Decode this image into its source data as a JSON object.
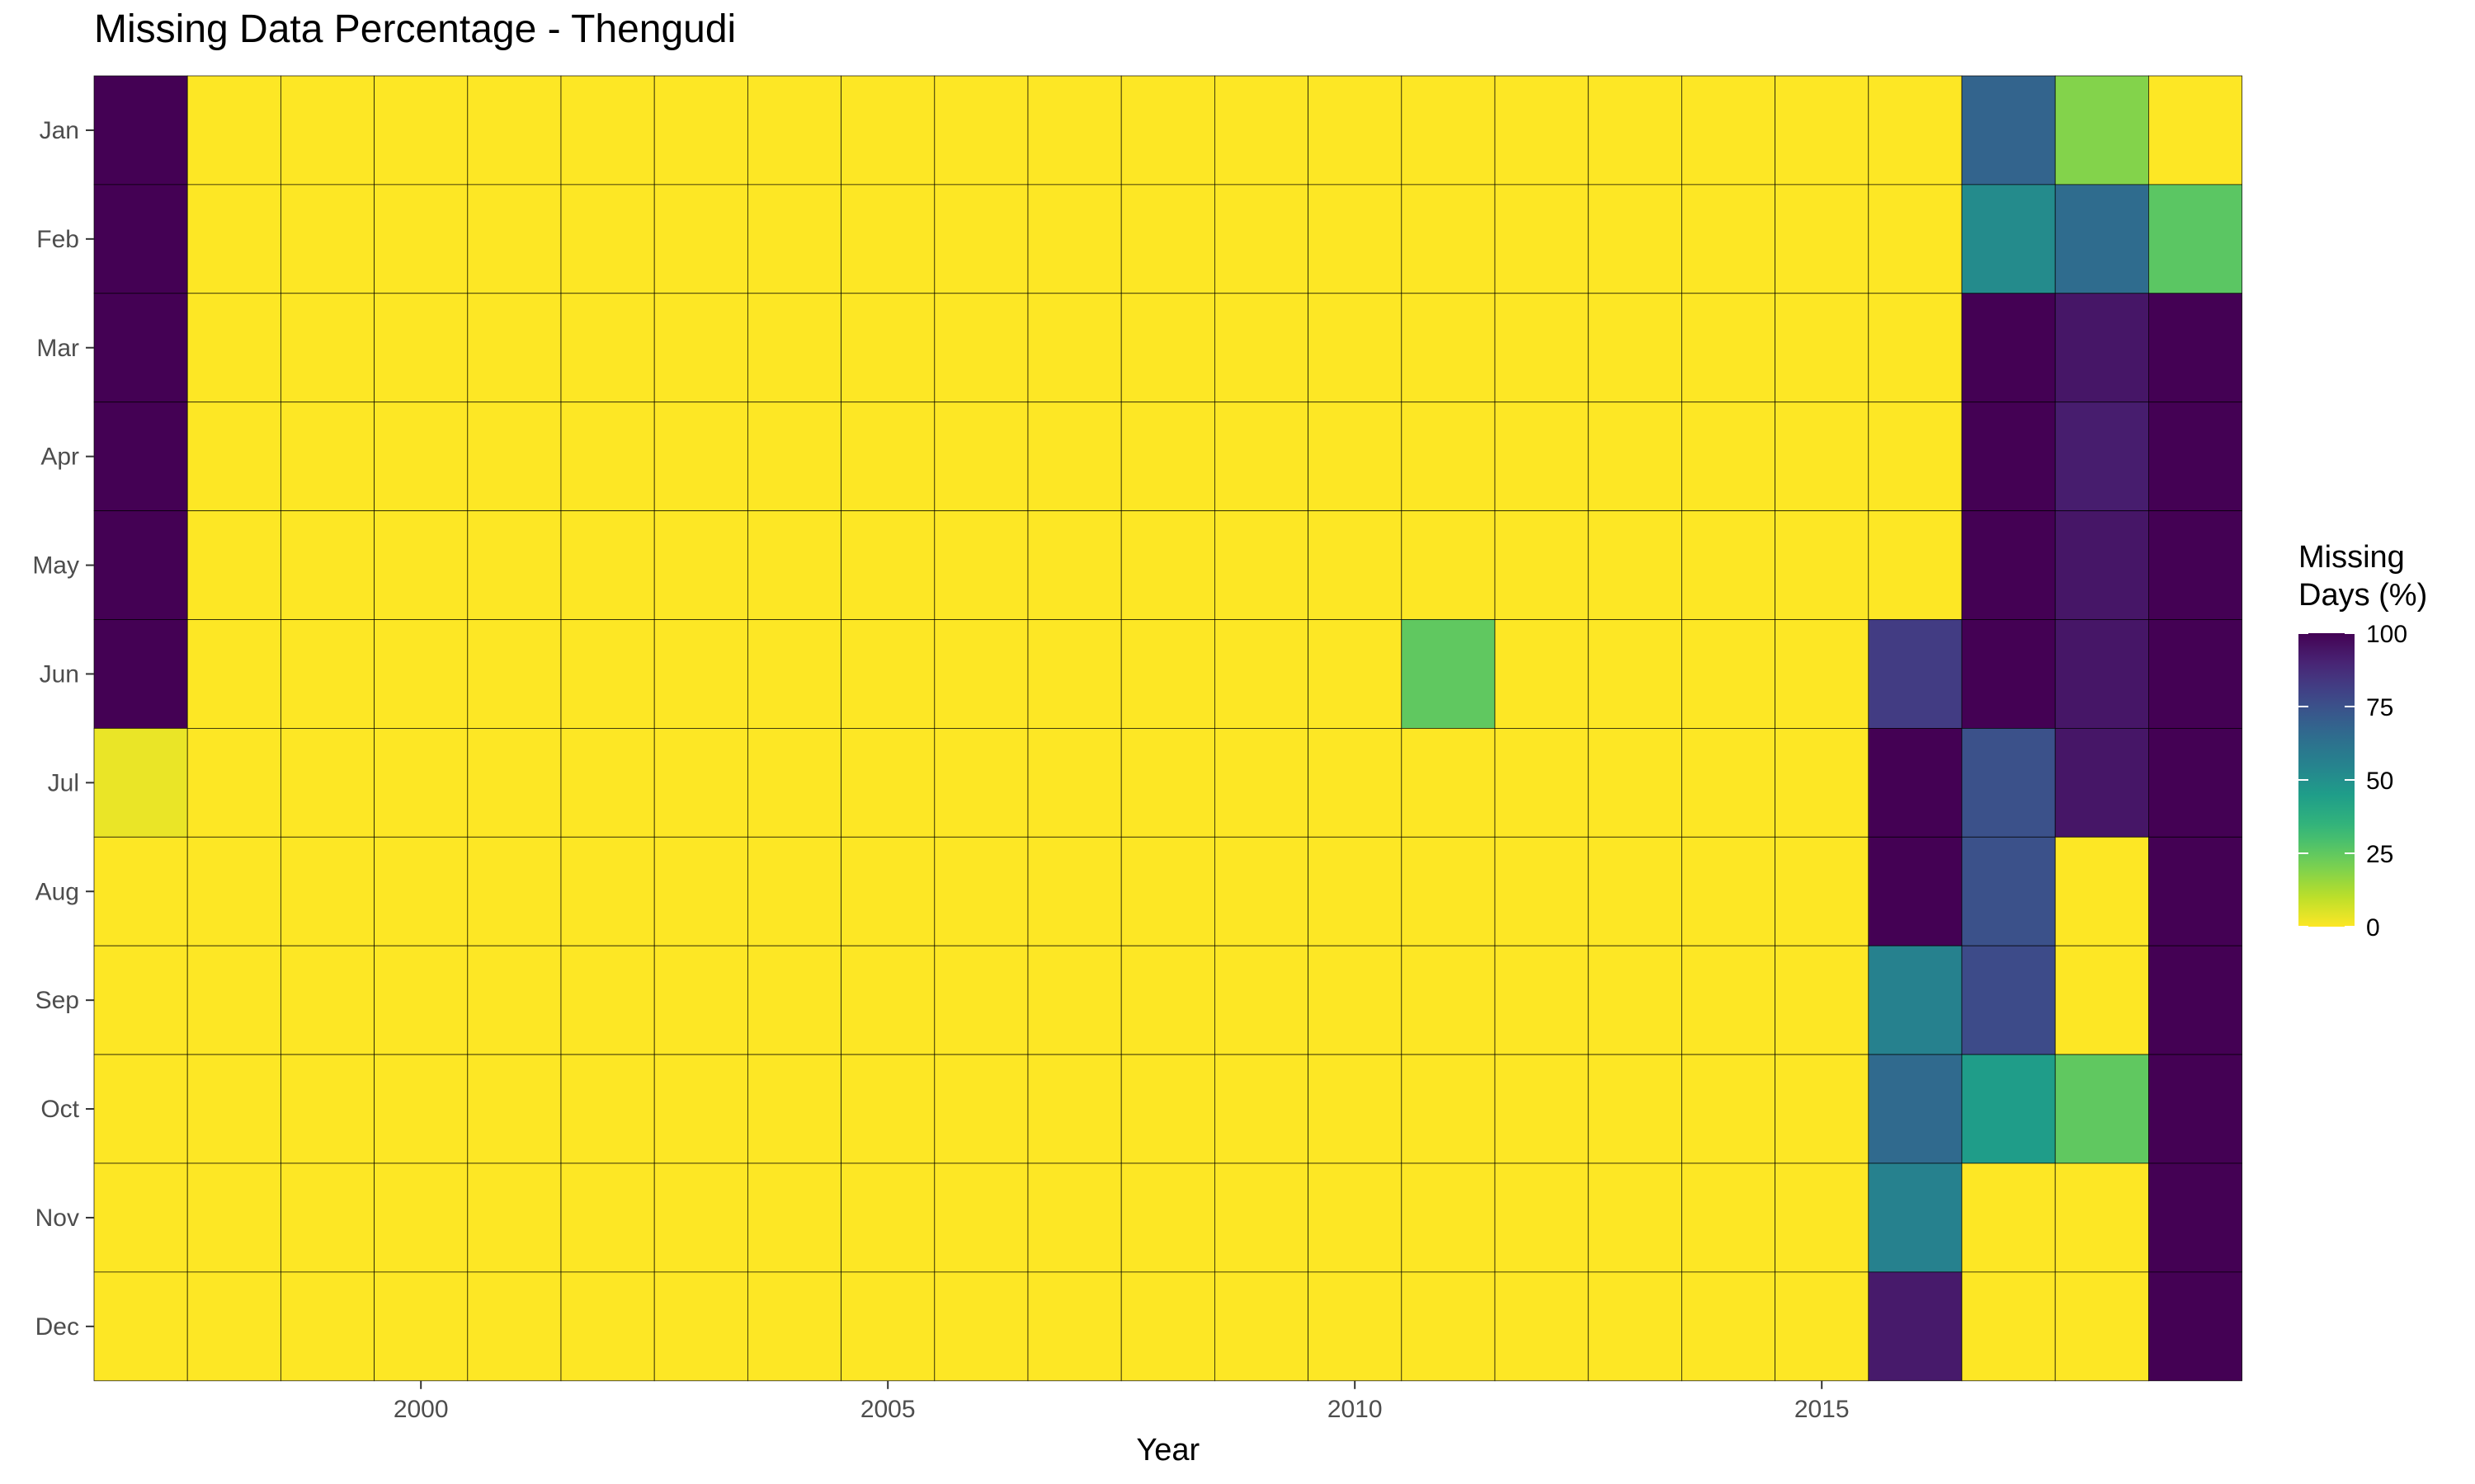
{
  "chart_data": {
    "type": "heatmap",
    "title": "Missing Data Percentage - Thengudi",
    "xlabel": "Year",
    "ylabel": "",
    "x": [
      1997,
      1998,
      1999,
      2000,
      2001,
      2002,
      2003,
      2004,
      2005,
      2006,
      2007,
      2008,
      2009,
      2010,
      2011,
      2012,
      2013,
      2014,
      2015,
      2016,
      2017,
      2018,
      2019
    ],
    "x_ticks": [
      2000,
      2005,
      2010,
      2015
    ],
    "y": [
      "Jan",
      "Feb",
      "Mar",
      "Apr",
      "May",
      "Jun",
      "Jul",
      "Aug",
      "Sep",
      "Oct",
      "Nov",
      "Dec"
    ],
    "values": [
      [
        100,
        0,
        0,
        0,
        0,
        0,
        0,
        0,
        0,
        0,
        0,
        0,
        0,
        0,
        0,
        0,
        0,
        0,
        0,
        0,
        68,
        19,
        0
      ],
      [
        100,
        0,
        0,
        0,
        0,
        0,
        0,
        0,
        0,
        0,
        0,
        0,
        0,
        0,
        0,
        0,
        0,
        0,
        0,
        0,
        52,
        65,
        26
      ],
      [
        100,
        0,
        0,
        0,
        0,
        0,
        0,
        0,
        0,
        0,
        0,
        0,
        0,
        0,
        0,
        0,
        0,
        0,
        0,
        0,
        100,
        94,
        100
      ],
      [
        100,
        0,
        0,
        0,
        0,
        0,
        0,
        0,
        0,
        0,
        0,
        0,
        0,
        0,
        0,
        0,
        0,
        0,
        0,
        0,
        100,
        92,
        100
      ],
      [
        100,
        0,
        0,
        0,
        0,
        0,
        0,
        0,
        0,
        0,
        0,
        0,
        0,
        0,
        0,
        0,
        0,
        0,
        0,
        0,
        100,
        94,
        100
      ],
      [
        100,
        0,
        0,
        0,
        0,
        0,
        0,
        0,
        0,
        0,
        0,
        0,
        0,
        0,
        25,
        0,
        0,
        0,
        0,
        82,
        100,
        94,
        100
      ],
      [
        3,
        0,
        0,
        0,
        0,
        0,
        0,
        0,
        0,
        0,
        0,
        0,
        0,
        0,
        0,
        0,
        0,
        0,
        0,
        100,
        75,
        94,
        100
      ],
      [
        0,
        0,
        0,
        0,
        0,
        0,
        0,
        0,
        0,
        0,
        0,
        0,
        0,
        0,
        0,
        0,
        0,
        0,
        0,
        100,
        75,
        0,
        100
      ],
      [
        0,
        0,
        0,
        0,
        0,
        0,
        0,
        0,
        0,
        0,
        0,
        0,
        0,
        0,
        0,
        0,
        0,
        0,
        0,
        56,
        77,
        0,
        100
      ],
      [
        0,
        0,
        0,
        0,
        0,
        0,
        0,
        0,
        0,
        0,
        0,
        0,
        0,
        0,
        0,
        0,
        0,
        0,
        0,
        66,
        45,
        25,
        100
      ],
      [
        0,
        0,
        0,
        0,
        0,
        0,
        0,
        0,
        0,
        0,
        0,
        0,
        0,
        0,
        0,
        0,
        0,
        0,
        0,
        56,
        0,
        0,
        100
      ],
      [
        0,
        0,
        0,
        0,
        0,
        0,
        0,
        0,
        0,
        0,
        0,
        0,
        0,
        0,
        0,
        0,
        0,
        0,
        0,
        93,
        0,
        0,
        100
      ]
    ],
    "color_scale": "viridis (reversed)",
    "color_range": [
      0,
      100
    ],
    "legend": {
      "title": "Missing\nDays (%)",
      "title_lines": [
        "Missing",
        "Days (%)"
      ],
      "ticks": [
        100,
        75,
        50,
        25,
        0
      ],
      "tick_labels": [
        "100",
        "75",
        "50",
        "25",
        "0"
      ],
      "position": "right"
    },
    "grid": false
  }
}
